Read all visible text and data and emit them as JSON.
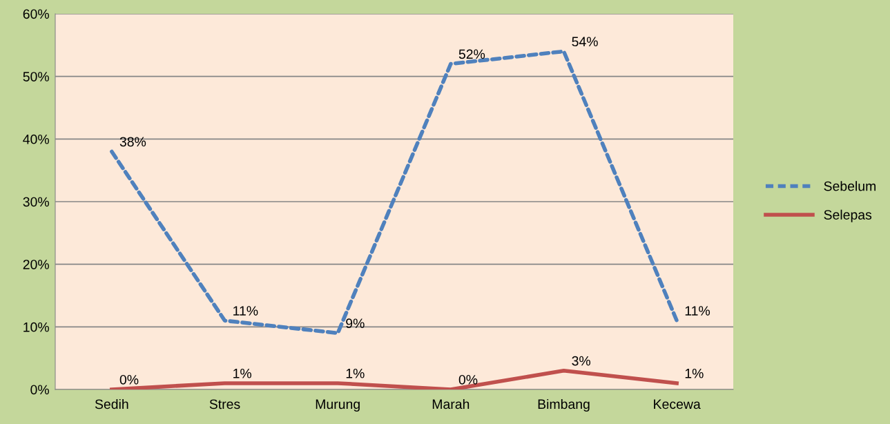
{
  "chart_data": {
    "type": "line",
    "categories": [
      "Sedih",
      "Stres",
      "Murung",
      "Marah",
      "Bimbang",
      "Kecewa"
    ],
    "series": [
      {
        "name": "Sebelum",
        "color": "#4f81bd",
        "line_style": "dashed",
        "values": [
          38,
          11,
          9,
          52,
          54,
          11
        ],
        "value_labels": [
          "38%",
          "11%",
          "9%",
          "52%",
          "54%",
          "11%"
        ]
      },
      {
        "name": "Selepas",
        "color": "#c0504d",
        "line_style": "solid",
        "values": [
          0,
          1,
          1,
          0,
          3,
          1
        ],
        "value_labels": [
          "0%",
          "1%",
          "1%",
          "0%",
          "3%",
          "1%"
        ]
      }
    ],
    "ylim": [
      0,
      60
    ],
    "yticks": [
      {
        "value": 0,
        "label": "0%"
      },
      {
        "value": 10,
        "label": "10%"
      },
      {
        "value": 20,
        "label": "20%"
      },
      {
        "value": 30,
        "label": "30%"
      },
      {
        "value": 40,
        "label": "40%"
      },
      {
        "value": 50,
        "label": "50%"
      },
      {
        "value": 60,
        "label": "60%"
      }
    ],
    "grid": "y",
    "legend": "right",
    "marker": "none"
  }
}
